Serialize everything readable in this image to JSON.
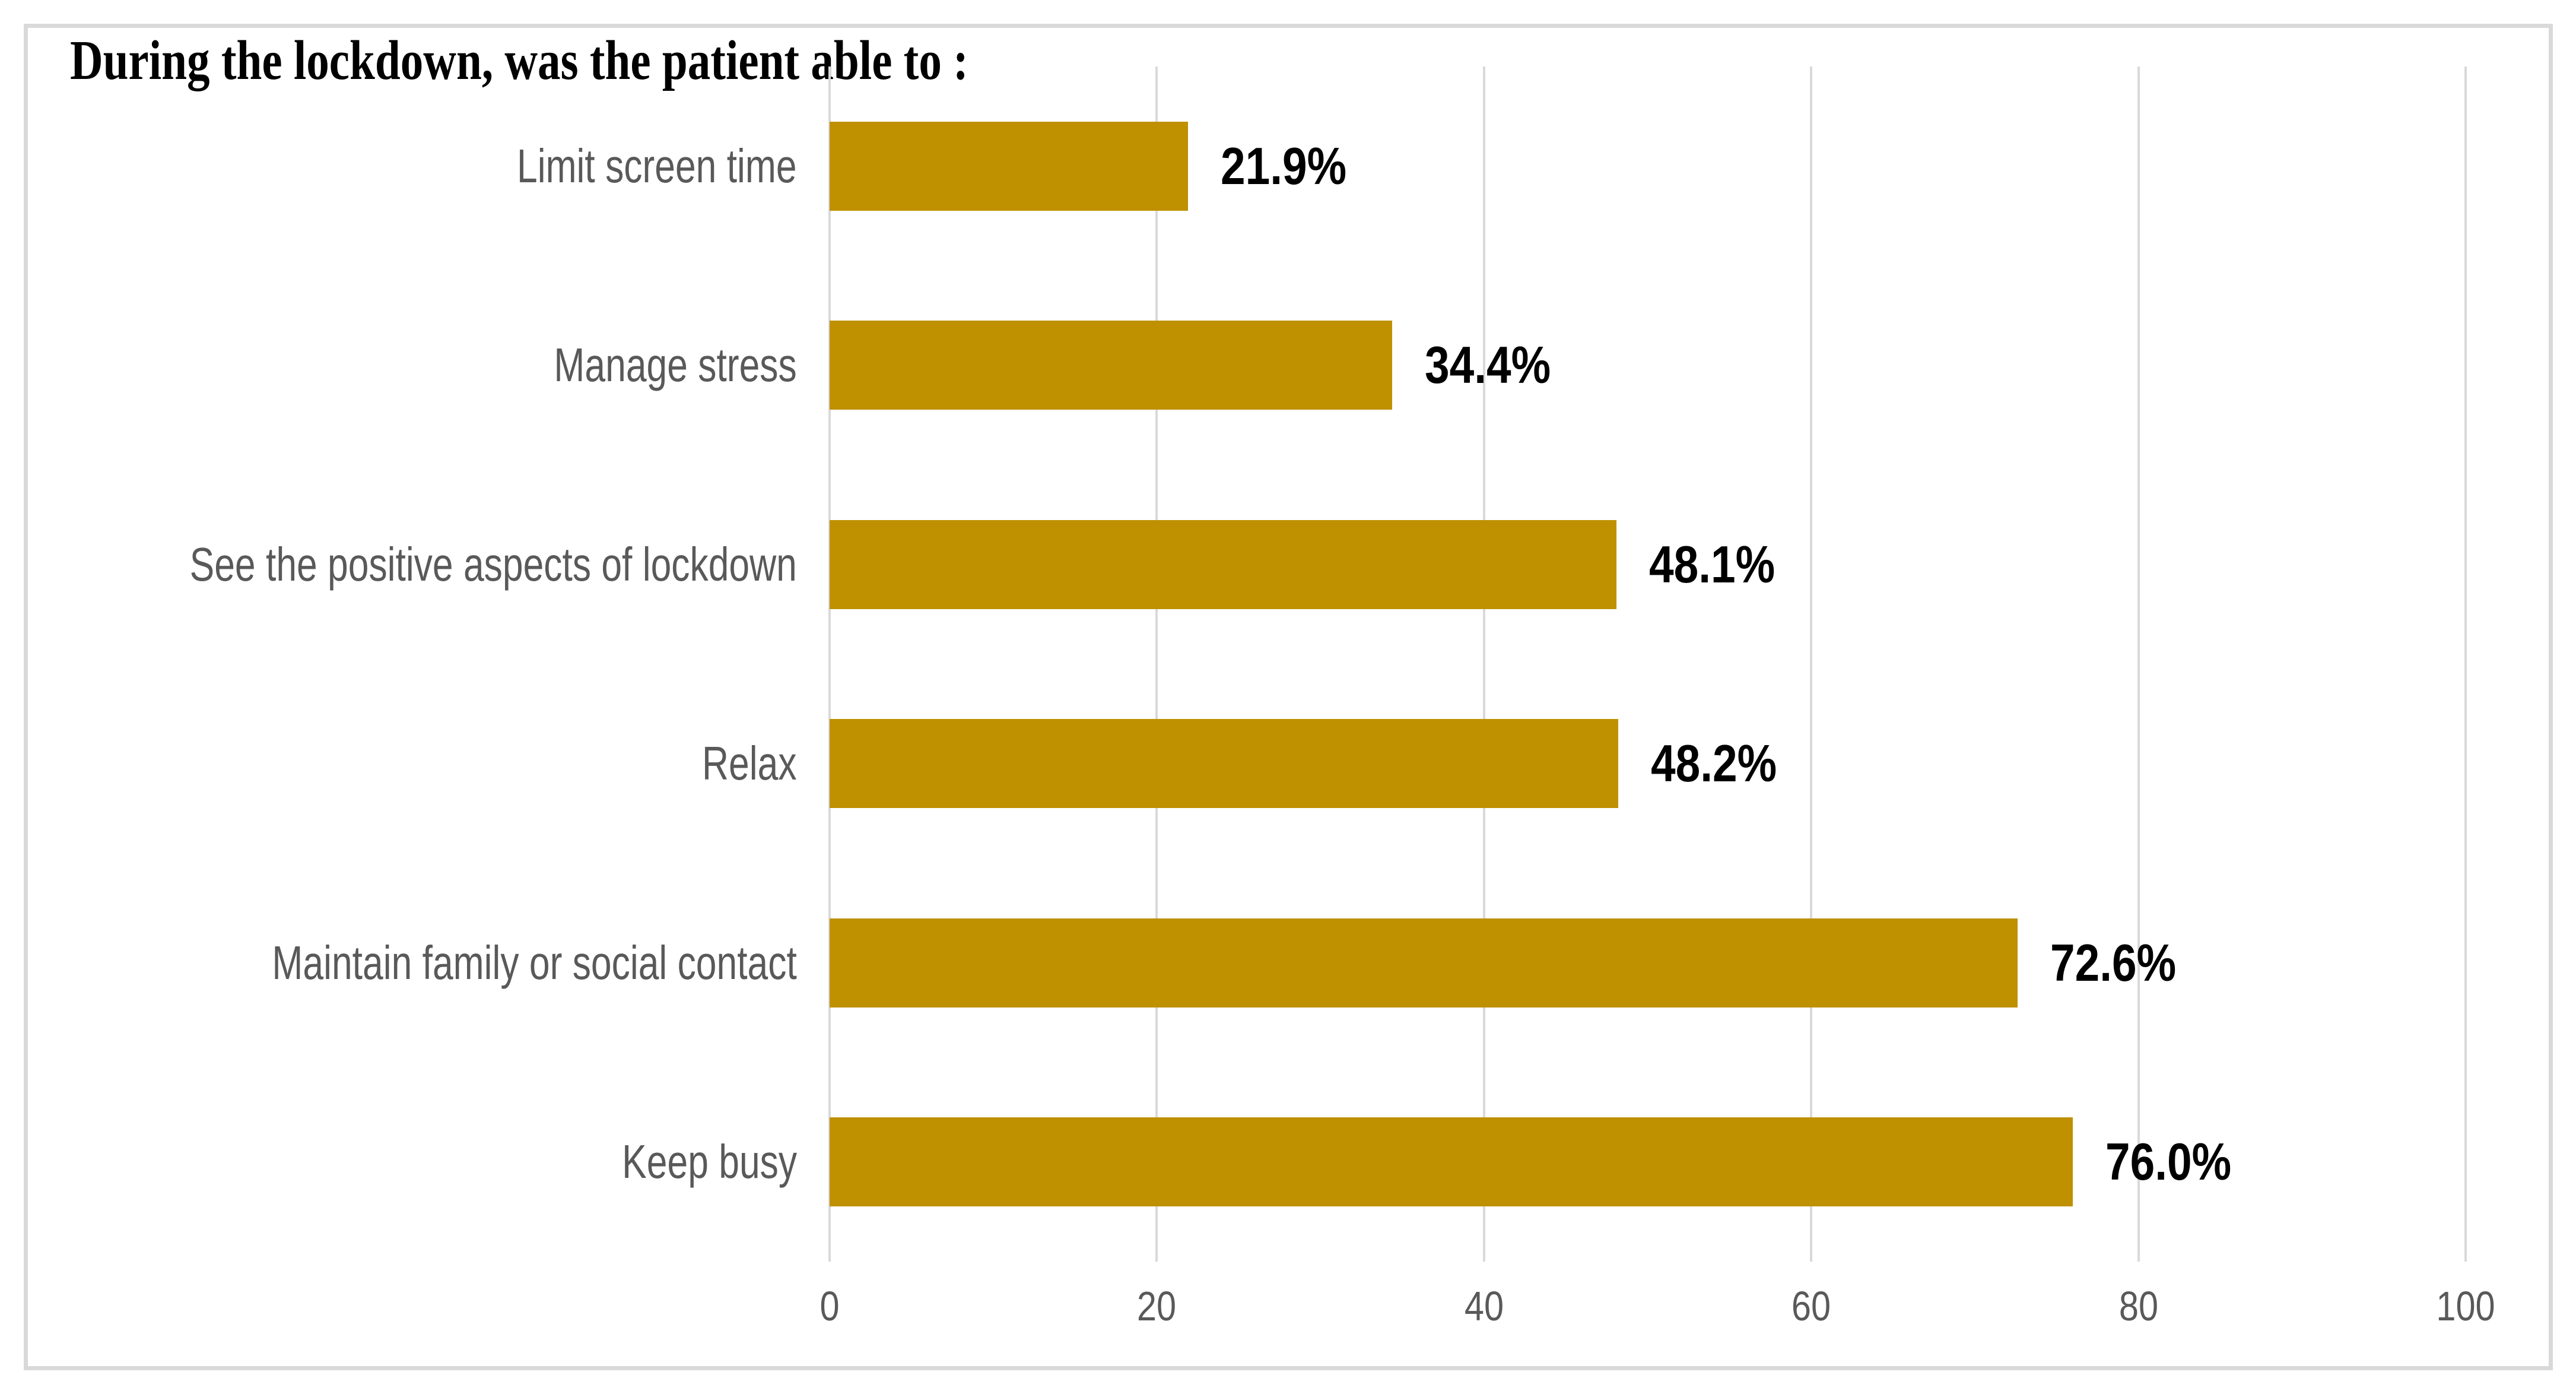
{
  "chart_data": {
    "type": "bar",
    "orientation": "horizontal",
    "title": "During the lockdown, was the patient able to :",
    "categories": [
      "Limit screen time",
      "Manage stress",
      "See the positive aspects of lockdown",
      "Relax",
      "Maintain family or social contact",
      "Keep busy"
    ],
    "values": [
      21.9,
      34.4,
      48.1,
      48.2,
      72.6,
      76.0
    ],
    "value_labels": [
      "21.9%",
      "34.4%",
      "48.1%",
      "48.2%",
      "72.6%",
      "76.0%"
    ],
    "x_ticks": [
      0,
      20,
      40,
      60,
      80,
      100
    ],
    "x_tick_labels": [
      "0",
      "20",
      "40",
      "60",
      "80",
      "100"
    ],
    "xlim": [
      0,
      100
    ],
    "xlabel": "",
    "ylabel": "",
    "grid": "vertical-major",
    "legend": "none",
    "bar_color": "#BF9000",
    "category_label_color": "#595959",
    "tick_label_color": "#595959",
    "gridline_color": "#D9D9D9",
    "frame_color": "#D9D9D9",
    "title_color": "#000000",
    "data_label_color": "#000000"
  }
}
